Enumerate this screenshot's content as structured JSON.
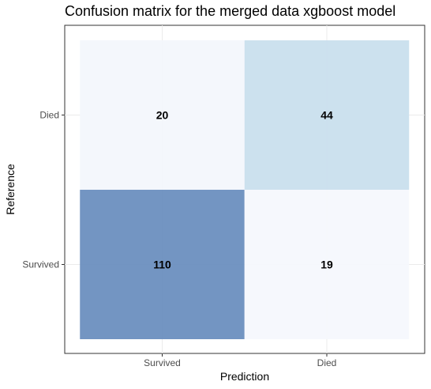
{
  "chart_data": {
    "type": "heatmap",
    "title": "Confusion matrix for the merged data xgboost model",
    "xlabel": "Prediction",
    "ylabel": "Reference",
    "x_categories": [
      "Survived",
      "Died"
    ],
    "y_categories": [
      "Survived",
      "Died"
    ],
    "cells": [
      {
        "prediction": "Survived",
        "reference": "Died",
        "value": 20
      },
      {
        "prediction": "Died",
        "reference": "Died",
        "value": 44
      },
      {
        "prediction": "Survived",
        "reference": "Survived",
        "value": 110
      },
      {
        "prediction": "Died",
        "reference": "Survived",
        "value": 19
      }
    ],
    "color_scale": {
      "low": "#f5f8fd",
      "mid": "#cce2ef",
      "high": "#6b8fbf"
    },
    "grid": true,
    "legend": "none"
  }
}
